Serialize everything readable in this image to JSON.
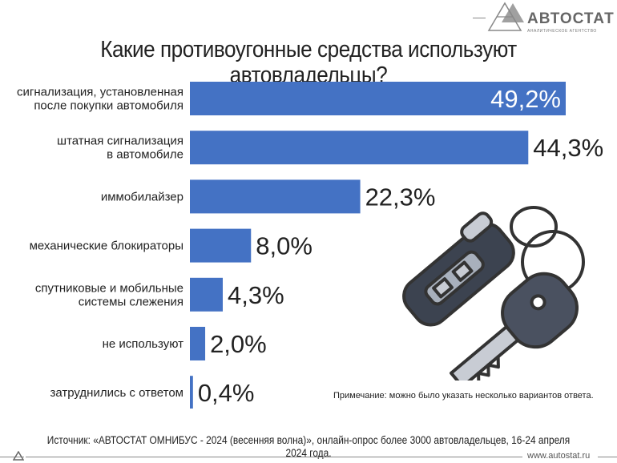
{
  "logo": {
    "name": "АВТОСТАТ",
    "subtitle": "АНАЛИТИЧЕСКОЕ АГЕНТСТВО"
  },
  "chart_data": {
    "type": "bar",
    "orientation": "horizontal",
    "title": "Какие противоугонные средства используют автовладельцы?",
    "categories": [
      [
        "сигнализация, установленная",
        "после покупки автомобиля"
      ],
      [
        "штатная сигнализация",
        "в автомобиле"
      ],
      [
        "иммобилайзер"
      ],
      [
        "механические блокираторы"
      ],
      [
        "спутниковые и мобильные",
        "системы слежения"
      ],
      [
        "не используют"
      ],
      [
        "затруднились с ответом"
      ]
    ],
    "values": [
      49.2,
      44.3,
      22.3,
      8.0,
      4.3,
      2.0,
      0.4
    ],
    "value_labels": [
      "49,2%",
      "44,3%",
      "22,3%",
      "8,0%",
      "4,3%",
      "2,0%",
      "0,4%"
    ],
    "unit": "%",
    "bar_color": "#4472c4",
    "xlim": [
      0,
      50
    ],
    "grid": false
  },
  "note": "Примечание: можно было указать несколько вариантов ответа.",
  "source": "Источник: «АВТОСТАТ ОМНИБУС - 2024 (весенняя волна)», онлайн-опрос более 3000 автовладельцев, 16-24 апреля 2024 года.",
  "site": "www.autostat.ru"
}
